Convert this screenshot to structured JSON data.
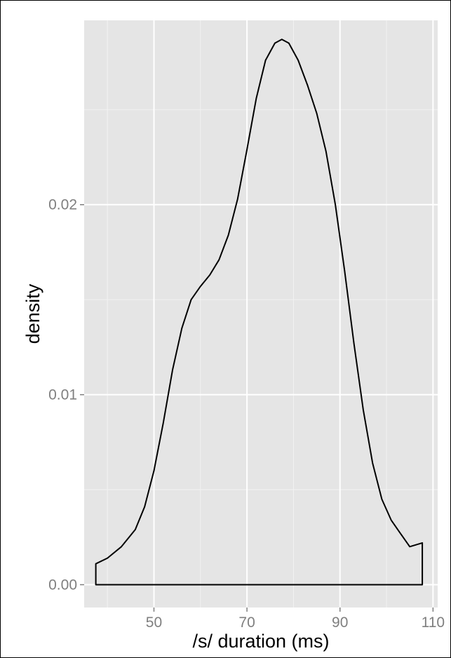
{
  "chart_data": {
    "type": "area",
    "title": "",
    "xlabel": "/s/ duration (ms)",
    "ylabel": "density",
    "xlim": [
      35,
      111
    ],
    "ylim": [
      -0.0012,
      0.0297
    ],
    "x_ticks": [
      50,
      70,
      90,
      110
    ],
    "x_tick_labels": [
      "50",
      "70",
      "90",
      "110"
    ],
    "y_ticks": [
      0.0,
      0.01,
      0.02
    ],
    "y_tick_labels": [
      "0.00",
      "0.01",
      "0.02"
    ],
    "x_minor_ticks": [
      40,
      60,
      80,
      100
    ],
    "y_minor_ticks": [
      0.005,
      0.015,
      0.025
    ],
    "grid": true,
    "panel_background": "#e5e5e5",
    "grid_color": "#ffffff",
    "line_color": "#000000",
    "series": [
      {
        "x": [
          37.5,
          40,
          43,
          46,
          48,
          50,
          52,
          54,
          56,
          58,
          60,
          62,
          64,
          66,
          68,
          70,
          72,
          74,
          76,
          77.5,
          79,
          81,
          83,
          85,
          87,
          89,
          91,
          93,
          95,
          97,
          99,
          101,
          103,
          105,
          107.7
        ],
        "y": [
          0.0011,
          0.0014,
          0.002,
          0.0029,
          0.0041,
          0.006,
          0.0085,
          0.0113,
          0.0135,
          0.015,
          0.0157,
          0.0163,
          0.0171,
          0.0184,
          0.0203,
          0.0229,
          0.0256,
          0.0276,
          0.0285,
          0.0287,
          0.0285,
          0.0276,
          0.0263,
          0.0248,
          0.0228,
          0.02,
          0.0165,
          0.0127,
          0.0092,
          0.0064,
          0.0045,
          0.0034,
          0.0027,
          0.002,
          0.0022
        ]
      }
    ]
  }
}
